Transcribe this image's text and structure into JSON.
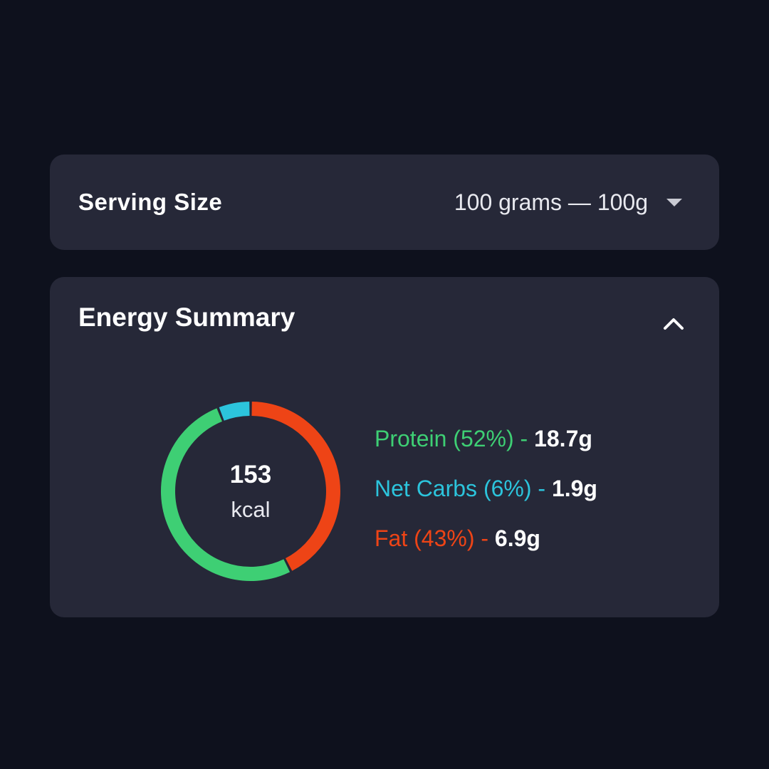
{
  "serving": {
    "title": "Serving Size",
    "value": "100 grams  — 100g"
  },
  "energy": {
    "title": "Energy Summary",
    "calories": "153",
    "unit": "kcal"
  },
  "colors": {
    "protein": "#3ecf74",
    "carbs": "#2cc4dc",
    "fat": "#ee4416",
    "card": "#262838",
    "background": "#0e111d"
  },
  "icons": {
    "serving_dropdown": "caret-down-icon",
    "collapse": "chevron-up-icon"
  },
  "chart_data": {
    "type": "pie",
    "title": "",
    "center_value": "153",
    "center_unit": "kcal",
    "slices": [
      {
        "key": "protein",
        "name": "Protein",
        "percent": 52,
        "percent_label": "(52%)",
        "amount": "18.7g",
        "color": "#3ecf74"
      },
      {
        "key": "carbs",
        "name": "Net Carbs",
        "percent": 6,
        "percent_label": "(6%)",
        "amount": "1.9g",
        "color": "#2cc4dc"
      },
      {
        "key": "fat",
        "name": "Fat",
        "percent": 43,
        "percent_label": "(43%)",
        "amount": "6.9g",
        "color": "#ee4416"
      }
    ]
  }
}
